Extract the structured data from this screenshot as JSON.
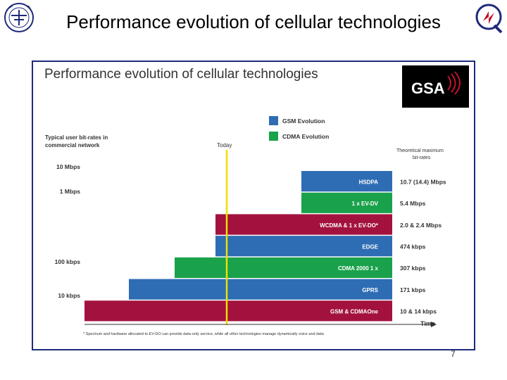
{
  "slide": {
    "title": "Performance evolution of cellular technologies",
    "page_number": "7"
  },
  "figure": {
    "inner_title": "Performance evolution of cellular technologies",
    "brand_logo": "GSA"
  },
  "colors": {
    "gsm_evolution": "#2e6db4",
    "cdma_evolution": "#1aa14b",
    "crimson": "#a3123e",
    "today_line": "#f0e000",
    "frame": "#1f2a7a"
  },
  "chart_data": {
    "type": "bar",
    "orientation": "horizontal-step",
    "legend": [
      {
        "name": "GSM Evolution",
        "color": "#2e6db4"
      },
      {
        "name": "CDMA Evolution",
        "color": "#1aa14b"
      }
    ],
    "legend_position": "top",
    "ylabel": "Typical user bit-rates in commercial network",
    "xlabel": "Time",
    "y_ticks": [
      "10 Mbps",
      "1 Mbps",
      "100 kbps",
      "10 kbps"
    ],
    "today_label": "Today",
    "rates_header": "Theoretical maximum bit-rates",
    "bars": [
      {
        "label": "HSDPA",
        "rate": "10.7 (14.4) Mbps",
        "family": "gsm"
      },
      {
        "label": "1 x EV-DV",
        "rate": "5.4 Mbps",
        "family": "cdma"
      },
      {
        "label": "WCDMA & 1 x EV-DO*",
        "rate": "2.0 & 2.4 Mbps",
        "family": "both"
      },
      {
        "label": "EDGE",
        "rate": "474 kbps",
        "family": "gsm"
      },
      {
        "label": "CDMA 2000 1 x",
        "rate": "307 kbps",
        "family": "cdma"
      },
      {
        "label": "GPRS",
        "rate": "171 kbps",
        "family": "gsm"
      },
      {
        "label": "GSM & CDMAOne",
        "rate": "10 & 14 kbps",
        "family": "both"
      }
    ],
    "footnote": "* Spectrum and hardware allocated to EV-DO can provide data-only service, while all other technologies manage dynamically voice and data",
    "grid": false
  }
}
